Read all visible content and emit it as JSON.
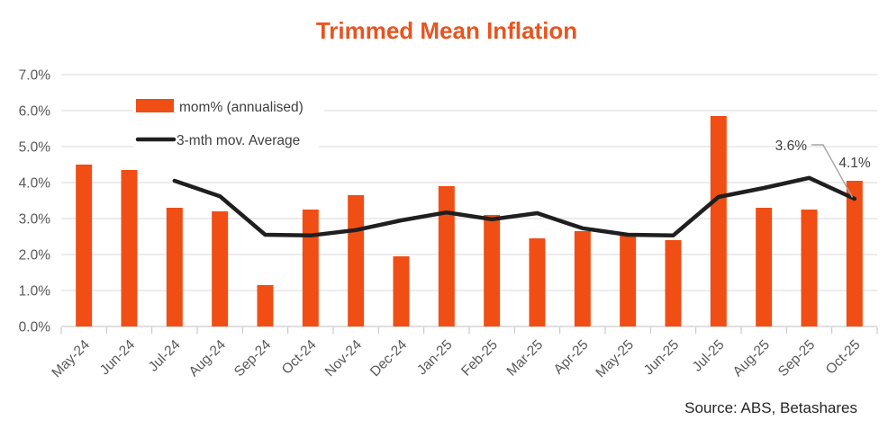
{
  "title": "Trimmed Mean Inflation",
  "source_note": "Source: ABS, Betashares",
  "legend": {
    "bar_label": "mom% (annualised)",
    "line_label": "3-mth mov. Average"
  },
  "annotations": {
    "ma_end_label": "3.6%",
    "ma_end_points_to": "Oct-25 3-mth moving average",
    "bar_end_label": "4.1%",
    "bar_end_points_to": "Oct-25 mom% (annualised)"
  },
  "colors": {
    "bar": "#F04E14",
    "title": "#E95420",
    "line": "#1F1F1F",
    "grid": "#D9D9D9",
    "axis_line": "#BFBFBF",
    "axis_text": "#595959",
    "legend_text": "#404040",
    "leader": "#A6A6A6",
    "source_text": "#262626",
    "background": "#FFFFFF"
  },
  "chart_data": {
    "type": "bar",
    "title": "Trimmed Mean Inflation",
    "xlabel": "",
    "ylabel": "",
    "ylim": [
      0,
      7
    ],
    "y_tick_step": 1.0,
    "y_tick_labels": [
      "0.0%",
      "1.0%",
      "2.0%",
      "3.0%",
      "4.0%",
      "5.0%",
      "6.0%",
      "7.0%"
    ],
    "grid": true,
    "legend_position": "top-left-inside",
    "categories": [
      "May-24",
      "Jun-24",
      "Jul-24",
      "Aug-24",
      "Sep-24",
      "Oct-24",
      "Nov-24",
      "Dec-24",
      "Jan-25",
      "Feb-25",
      "Mar-25",
      "Apr-25",
      "May-25",
      "Jun-25",
      "Jul-25",
      "Aug-25",
      "Sep-25",
      "Oct-25"
    ],
    "series": [
      {
        "name": "mom% (annualised)",
        "type": "bar",
        "unit": "%",
        "values": [
          4.5,
          4.35,
          3.3,
          3.2,
          1.15,
          3.25,
          3.65,
          1.95,
          3.9,
          3.1,
          2.45,
          2.65,
          2.55,
          2.4,
          5.85,
          3.3,
          3.25,
          4.05
        ]
      },
      {
        "name": "3-mth mov. Average",
        "type": "line",
        "unit": "%",
        "values": [
          null,
          null,
          4.05,
          3.62,
          2.55,
          2.53,
          2.68,
          2.95,
          3.17,
          2.98,
          3.15,
          2.73,
          2.55,
          2.53,
          3.6,
          3.85,
          4.13,
          3.55
        ]
      }
    ]
  }
}
